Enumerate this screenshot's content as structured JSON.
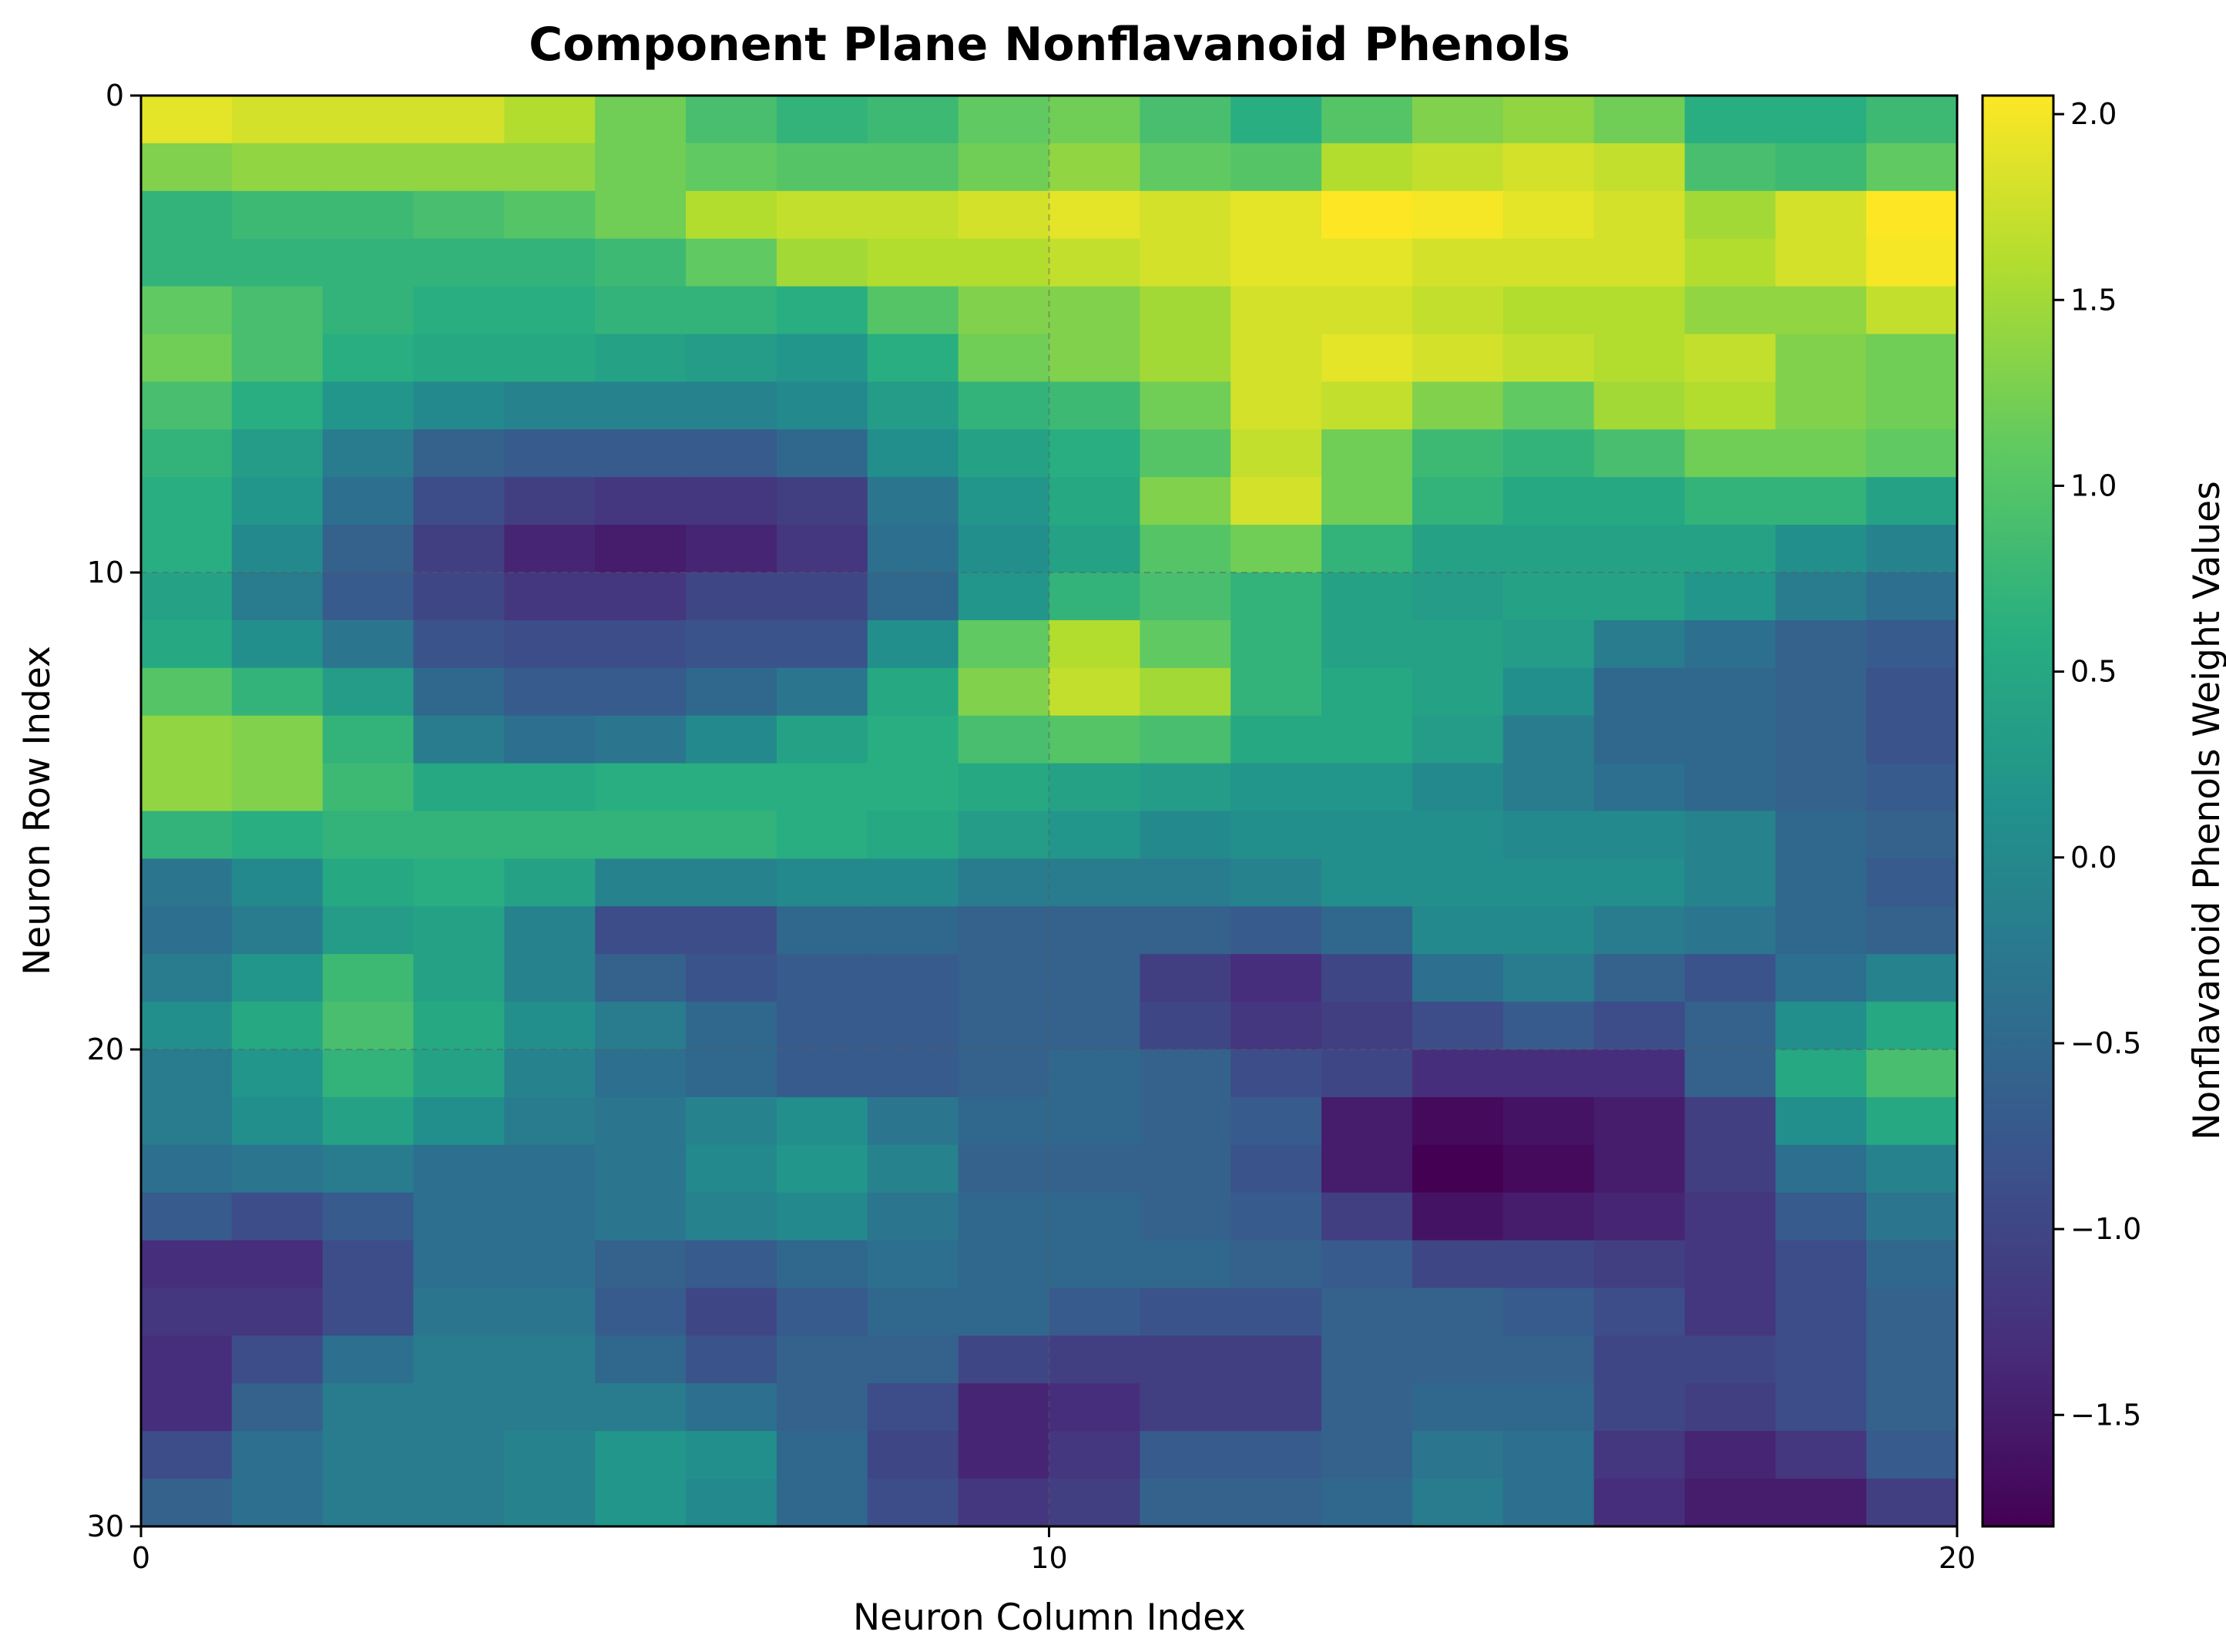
{
  "chart_data": {
    "type": "heatmap",
    "title": "Component Plane Nonflavanoid Phenols",
    "xlabel": "Neuron Column Index",
    "ylabel": "Neuron Row Index",
    "colorbar_label": "Nonflavanoid Phenols Weight Values",
    "colormap": "viridis",
    "xlim": [
      0,
      20
    ],
    "ylim": [
      30,
      0
    ],
    "vmin": -1.8,
    "vmax": 2.05,
    "grid": true,
    "x_ticks": [
      "0",
      "10",
      "20"
    ],
    "y_ticks": [
      "0",
      "10",
      "20",
      "30"
    ],
    "colorbar_ticks": [
      {
        "value": 2.0,
        "label": "2.0"
      },
      {
        "value": 1.5,
        "label": "1.5"
      },
      {
        "value": 1.0,
        "label": "1.0"
      },
      {
        "value": 0.5,
        "label": "0.5"
      },
      {
        "value": 0.0,
        "label": "0.0"
      },
      {
        "value": -0.5,
        "label": "−0.5"
      },
      {
        "value": -1.0,
        "label": "−1.0"
      },
      {
        "value": -1.5,
        "label": "−1.5"
      }
    ],
    "values": [
      [
        1.9,
        1.8,
        1.8,
        1.8,
        1.6,
        1.2,
        0.9,
        0.7,
        0.8,
        1.1,
        1.2,
        0.9,
        0.6,
        1.0,
        1.3,
        1.4,
        1.2,
        0.6,
        0.6,
        0.8
      ],
      [
        1.3,
        1.4,
        1.4,
        1.4,
        1.4,
        1.2,
        1.1,
        1.0,
        1.0,
        1.2,
        1.4,
        1.1,
        1.0,
        1.6,
        1.7,
        1.8,
        1.7,
        0.9,
        0.8,
        1.1
      ],
      [
        0.7,
        0.8,
        0.8,
        0.9,
        1.0,
        1.2,
        1.6,
        1.7,
        1.7,
        1.8,
        1.9,
        1.8,
        1.9,
        2.05,
        2.0,
        1.9,
        1.8,
        1.5,
        1.8,
        2.05
      ],
      [
        0.7,
        0.7,
        0.7,
        0.7,
        0.7,
        0.8,
        1.1,
        1.5,
        1.6,
        1.6,
        1.7,
        1.8,
        1.9,
        1.9,
        1.8,
        1.8,
        1.8,
        1.6,
        1.8,
        2.0
      ],
      [
        1.1,
        0.9,
        0.7,
        0.6,
        0.6,
        0.7,
        0.7,
        0.6,
        1.0,
        1.3,
        1.3,
        1.5,
        1.8,
        1.8,
        1.7,
        1.6,
        1.6,
        1.4,
        1.4,
        1.7
      ],
      [
        1.2,
        0.9,
        0.6,
        0.5,
        0.5,
        0.4,
        0.3,
        0.2,
        0.6,
        1.2,
        1.3,
        1.5,
        1.8,
        1.9,
        1.8,
        1.7,
        1.6,
        1.7,
        1.3,
        1.2
      ],
      [
        0.9,
        0.6,
        0.2,
        0.0,
        -0.1,
        -0.1,
        -0.1,
        0.0,
        0.3,
        0.7,
        0.8,
        1.2,
        1.8,
        1.7,
        1.3,
        1.1,
        1.5,
        1.6,
        1.3,
        1.2
      ],
      [
        0.7,
        0.3,
        -0.2,
        -0.6,
        -0.7,
        -0.7,
        -0.7,
        -0.5,
        0.1,
        0.4,
        0.6,
        1.0,
        1.7,
        1.2,
        0.8,
        0.7,
        0.9,
        1.2,
        1.2,
        1.1
      ],
      [
        0.6,
        0.2,
        -0.4,
        -0.9,
        -1.1,
        -1.2,
        -1.2,
        -1.1,
        -0.3,
        0.2,
        0.5,
        1.3,
        1.8,
        1.2,
        0.7,
        0.5,
        0.5,
        0.7,
        0.7,
        0.4
      ],
      [
        0.6,
        0.0,
        -0.6,
        -1.1,
        -1.4,
        -1.5,
        -1.4,
        -1.2,
        -0.4,
        0.1,
        0.4,
        1.0,
        1.2,
        0.7,
        0.4,
        0.4,
        0.4,
        0.4,
        0.1,
        -0.1
      ],
      [
        0.4,
        -0.2,
        -0.7,
        -1.0,
        -1.2,
        -1.2,
        -1.0,
        -1.0,
        -0.5,
        0.2,
        0.7,
        0.9,
        0.7,
        0.4,
        0.3,
        0.4,
        0.4,
        0.2,
        -0.2,
        -0.4
      ],
      [
        0.5,
        0.1,
        -0.3,
        -0.8,
        -0.9,
        -0.9,
        -0.8,
        -0.8,
        0.1,
        1.1,
        1.6,
        1.1,
        0.7,
        0.4,
        0.4,
        0.3,
        -0.2,
        -0.4,
        -0.6,
        -0.7
      ],
      [
        1.0,
        0.7,
        0.3,
        -0.5,
        -0.7,
        -0.7,
        -0.5,
        -0.3,
        0.5,
        1.3,
        1.7,
        1.5,
        0.7,
        0.5,
        0.4,
        0.1,
        -0.5,
        -0.5,
        -0.6,
        -0.8
      ],
      [
        1.4,
        1.3,
        0.7,
        -0.2,
        -0.4,
        -0.3,
        0.0,
        0.4,
        0.6,
        0.9,
        1.0,
        0.9,
        0.5,
        0.5,
        0.3,
        -0.2,
        -0.5,
        -0.5,
        -0.6,
        -0.8
      ],
      [
        1.4,
        1.3,
        0.8,
        0.5,
        0.5,
        0.6,
        0.6,
        0.6,
        0.6,
        0.5,
        0.4,
        0.3,
        0.2,
        0.2,
        0.0,
        -0.2,
        -0.4,
        -0.5,
        -0.6,
        -0.7
      ],
      [
        0.7,
        0.6,
        0.7,
        0.7,
        0.7,
        0.7,
        0.7,
        0.6,
        0.5,
        0.3,
        0.2,
        0.0,
        0.1,
        0.1,
        0.1,
        0.0,
        0.0,
        -0.1,
        -0.5,
        -0.6
      ],
      [
        -0.3,
        0.0,
        0.5,
        0.6,
        0.4,
        -0.1,
        -0.1,
        0.0,
        0.0,
        -0.2,
        -0.2,
        -0.2,
        -0.1,
        0.1,
        0.1,
        0.1,
        0.1,
        -0.1,
        -0.5,
        -0.7
      ],
      [
        -0.4,
        -0.2,
        0.3,
        0.4,
        -0.1,
        -0.9,
        -0.9,
        -0.5,
        -0.5,
        -0.6,
        -0.6,
        -0.6,
        -0.7,
        -0.5,
        0.0,
        0.0,
        -0.2,
        -0.3,
        -0.5,
        -0.6
      ],
      [
        -0.2,
        0.2,
        0.8,
        0.4,
        -0.1,
        -0.6,
        -0.8,
        -0.7,
        -0.7,
        -0.6,
        -0.6,
        -1.1,
        -1.3,
        -1.0,
        -0.4,
        -0.2,
        -0.6,
        -0.8,
        -0.4,
        -0.1
      ],
      [
        0.1,
        0.5,
        0.9,
        0.5,
        0.1,
        -0.2,
        -0.5,
        -0.7,
        -0.7,
        -0.6,
        -0.6,
        -1.0,
        -1.2,
        -1.1,
        -0.9,
        -0.7,
        -0.9,
        -0.6,
        0.1,
        0.5
      ],
      [
        -0.2,
        0.2,
        0.7,
        0.4,
        -0.1,
        -0.4,
        -0.5,
        -0.7,
        -0.7,
        -0.6,
        -0.5,
        -0.6,
        -0.9,
        -1.0,
        -1.3,
        -1.3,
        -1.3,
        -0.6,
        0.5,
        0.9
      ],
      [
        -0.2,
        0.1,
        0.4,
        0.1,
        -0.2,
        -0.3,
        -0.1,
        0.1,
        -0.3,
        -0.5,
        -0.5,
        -0.6,
        -0.7,
        -1.5,
        -1.7,
        -1.6,
        -1.5,
        -1.1,
        0.1,
        0.5
      ],
      [
        -0.4,
        -0.3,
        -0.2,
        -0.4,
        -0.4,
        -0.3,
        0.0,
        0.2,
        -0.1,
        -0.6,
        -0.6,
        -0.6,
        -0.8,
        -1.5,
        -1.8,
        -1.7,
        -1.5,
        -1.1,
        -0.4,
        -0.1
      ],
      [
        -0.7,
        -0.9,
        -0.7,
        -0.4,
        -0.4,
        -0.3,
        -0.1,
        0.0,
        -0.3,
        -0.5,
        -0.5,
        -0.6,
        -0.7,
        -1.1,
        -1.6,
        -1.5,
        -1.4,
        -1.2,
        -0.7,
        -0.3
      ],
      [
        -1.3,
        -1.3,
        -0.9,
        -0.4,
        -0.4,
        -0.6,
        -0.7,
        -0.5,
        -0.4,
        -0.5,
        -0.5,
        -0.5,
        -0.6,
        -0.7,
        -1.0,
        -1.0,
        -1.1,
        -1.2,
        -0.9,
        -0.5
      ],
      [
        -1.2,
        -1.2,
        -0.9,
        -0.3,
        -0.3,
        -0.7,
        -1.0,
        -0.7,
        -0.5,
        -0.5,
        -0.7,
        -0.8,
        -0.8,
        -0.6,
        -0.6,
        -0.7,
        -0.9,
        -1.2,
        -0.9,
        -0.6
      ],
      [
        -1.3,
        -0.9,
        -0.4,
        -0.2,
        -0.2,
        -0.5,
        -0.8,
        -0.6,
        -0.6,
        -1.0,
        -1.1,
        -1.1,
        -1.1,
        -0.6,
        -0.6,
        -0.6,
        -1.0,
        -1.0,
        -0.9,
        -0.6
      ],
      [
        -1.3,
        -0.6,
        -0.2,
        -0.2,
        -0.2,
        -0.2,
        -0.4,
        -0.6,
        -0.9,
        -1.4,
        -1.3,
        -1.1,
        -1.1,
        -0.6,
        -0.5,
        -0.5,
        -1.0,
        -1.1,
        -0.9,
        -0.6
      ],
      [
        -0.9,
        -0.4,
        -0.2,
        -0.2,
        -0.1,
        0.2,
        0.1,
        -0.5,
        -1.0,
        -1.4,
        -1.2,
        -0.7,
        -0.7,
        -0.6,
        -0.3,
        -0.4,
        -1.2,
        -1.4,
        -1.2,
        -0.7
      ],
      [
        -0.6,
        -0.4,
        -0.2,
        -0.2,
        -0.1,
        0.2,
        0.0,
        -0.5,
        -0.9,
        -1.2,
        -1.1,
        -0.6,
        -0.6,
        -0.5,
        -0.2,
        -0.4,
        -1.3,
        -1.5,
        -1.5,
        -1.1
      ]
    ]
  }
}
